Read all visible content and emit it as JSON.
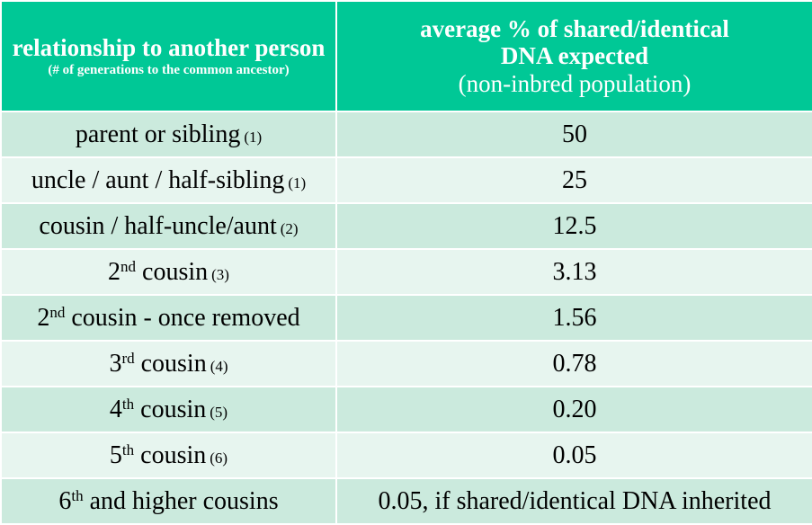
{
  "header": {
    "col1_title": "relationship to another person",
    "col1_subtitle": "(# of generations to the common ancestor)",
    "col2_title_line1": "average % of shared/identical",
    "col2_title_line2": "DNA expected",
    "col2_note": "(non-inbred population)"
  },
  "rows": [
    {
      "pre": "",
      "sup": "",
      "text": "parent or sibling",
      "gen": "(1)",
      "value": "50"
    },
    {
      "pre": "",
      "sup": "",
      "text": "uncle / aunt / half-sibling",
      "gen": "(1)",
      "value": "25"
    },
    {
      "pre": "",
      "sup": "",
      "text": "cousin / half-uncle/aunt",
      "gen": "(2)",
      "value": "12.5"
    },
    {
      "pre": "2",
      "sup": "nd",
      "text": " cousin",
      "gen": "(3)",
      "value": "3.13"
    },
    {
      "pre": "2",
      "sup": "nd",
      "text": " cousin - once removed",
      "gen": "",
      "value": "1.56"
    },
    {
      "pre": "3",
      "sup": "rd",
      "text": " cousin",
      "gen": "(4)",
      "value": "0.78"
    },
    {
      "pre": "4",
      "sup": "th",
      "text": " cousin",
      "gen": "(5)",
      "value": "0.20"
    },
    {
      "pre": "5",
      "sup": "th",
      "text": " cousin",
      "gen": "(6)",
      "value": "0.05"
    },
    {
      "pre": "6",
      "sup": "th",
      "text": " and higher cousins",
      "gen": "",
      "value": "0.05, if shared/identical DNA inherited"
    }
  ]
}
